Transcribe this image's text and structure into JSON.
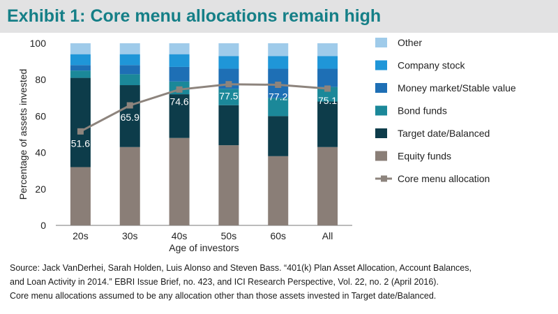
{
  "title": "Exhibit 1: Core menu allocations remain high",
  "colors": {
    "title": "#157f87",
    "title_bg": "#e2e2e3",
    "Other": "#9fcbea",
    "Company stock": "#1f96d8",
    "Money market/Stable value": "#1e6fb5",
    "Bond funds": "#1b8899",
    "Target date/Balanced": "#0d3c4a",
    "Equity funds": "#8a7e77",
    "Core menu allocation": "#8d847d"
  },
  "chart_data": {
    "type": "bar",
    "stacked": true,
    "categories": [
      "20s",
      "30s",
      "40s",
      "50s",
      "60s",
      "All"
    ],
    "xlabel": "Age of investors",
    "ylabel": "Percentage of assets invested",
    "ylim": [
      0,
      100
    ],
    "yticks": [
      0,
      20,
      40,
      60,
      80,
      100
    ],
    "grid": false,
    "legend_position": "right",
    "series": [
      {
        "name": "Equity funds",
        "values": [
          32,
          43,
          48,
          44,
          38,
          43
        ]
      },
      {
        "name": "Target date/Balanced",
        "values": [
          49,
          34,
          24,
          22,
          22,
          25
        ]
      },
      {
        "name": "Bond funds",
        "values": [
          4,
          6,
          7,
          9,
          10,
          8
        ]
      },
      {
        "name": "Money market/Stable value",
        "values": [
          3,
          5,
          8,
          11,
          16,
          10
        ]
      },
      {
        "name": "Company stock",
        "values": [
          6,
          6,
          7,
          7,
          7,
          7
        ]
      },
      {
        "name": "Other",
        "values": [
          6,
          6,
          6,
          7,
          7,
          7
        ]
      }
    ],
    "line": {
      "name": "Core menu allocation",
      "values": [
        51.6,
        65.9,
        74.6,
        77.5,
        77.2,
        75.1
      ],
      "labels": [
        "51.6",
        "65.9",
        "74.6",
        "77.5",
        "77.2",
        "75.1"
      ]
    },
    "legend": [
      "Other",
      "Company stock",
      "Money market/Stable value",
      "Bond funds",
      "Target date/Balanced",
      "Equity funds",
      "Core menu allocation"
    ]
  },
  "notes": {
    "source_line1": "Source: Jack VanDerhei, Sarah Holden, Luis Alonso and Steven Bass. “401(k) Plan Asset Allocation, Account Balances,",
    "source_line2": "and Loan Activity in 2014.” EBRI Issue Brief, no. 423, and ICI Research Perspective, Vol. 22, no. 2 (April 2016).",
    "assumption": "Core menu allocations assumed to be any allocation other than those assets invested in Target date/Balanced."
  }
}
